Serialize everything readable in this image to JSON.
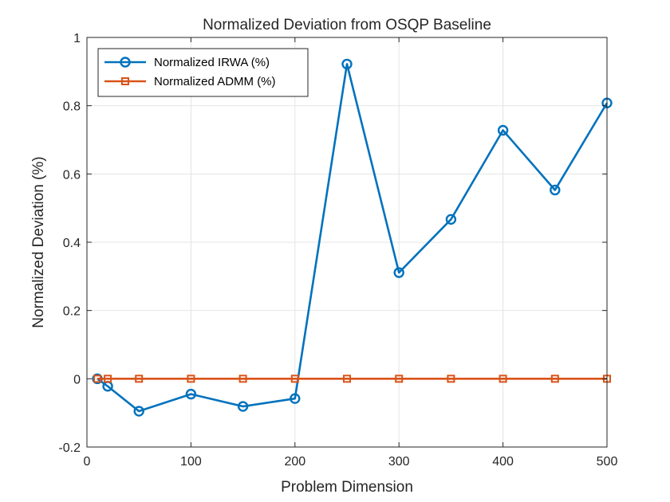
{
  "chart_data": {
    "type": "line",
    "title": "Normalized Deviation from OSQP Baseline",
    "xlabel": "Problem Dimension",
    "ylabel": "Normalized Deviation (%)",
    "xlim": [
      0,
      500
    ],
    "ylim": [
      -0.2,
      1
    ],
    "xticks": [
      0,
      100,
      200,
      300,
      400,
      500
    ],
    "yticks": [
      -0.2,
      0,
      0.2,
      0.4,
      0.6,
      0.8,
      1
    ],
    "xtick_labels": [
      "0",
      "100",
      "200",
      "300",
      "400",
      "500"
    ],
    "ytick_labels": [
      "-0.2",
      "0",
      "0.2",
      "0.4",
      "0.6",
      "0.8",
      "1"
    ],
    "grid": true,
    "legend": "top-left",
    "x": [
      10,
      20,
      50,
      100,
      150,
      200,
      250,
      300,
      350,
      400,
      450,
      500
    ],
    "series": [
      {
        "name": "Normalized IRWA (%)",
        "color": "#0072BD",
        "marker": "circle",
        "values": [
          0.0,
          -0.022,
          -0.095,
          -0.045,
          -0.081,
          -0.058,
          0.922,
          0.311,
          0.467,
          0.728,
          0.553,
          0.808
        ]
      },
      {
        "name": "Normalized ADMM (%)",
        "color": "#D95319",
        "marker": "square",
        "values": [
          0,
          0,
          0,
          0,
          0,
          0,
          0,
          0,
          0,
          0,
          0,
          0
        ]
      }
    ]
  }
}
